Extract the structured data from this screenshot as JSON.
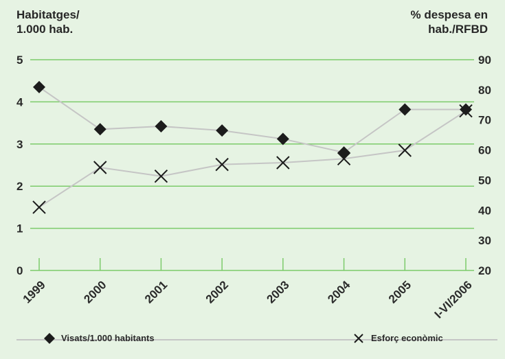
{
  "chart_data": {
    "type": "line",
    "title": "",
    "y_left_label_line1": "Habitatges/",
    "y_left_label_line2": "1.000 hab.",
    "y_right_label_line1": "% despesa en",
    "y_right_label_line2": "hab./RFBD",
    "categories": [
      "1999",
      "2000",
      "2001",
      "2002",
      "2003",
      "2004",
      "2005",
      "I-VI/2006"
    ],
    "y_left_ticks": [
      "0",
      "1",
      "2",
      "3",
      "4",
      "5"
    ],
    "y_right_ticks": [
      "20",
      "30",
      "40",
      "50",
      "60",
      "70",
      "80",
      "90"
    ],
    "y_left_range": [
      0,
      5
    ],
    "y_right_range": [
      20,
      90
    ],
    "grid": true,
    "legend_position": "bottom",
    "series": [
      {
        "name": "Visats/1.000 habitants",
        "axis": "left",
        "marker": "diamond",
        "values": [
          4.35,
          3.35,
          3.42,
          3.32,
          3.12,
          2.8,
          3.82,
          3.82
        ]
      },
      {
        "name": "Esforç econòmic",
        "axis": "right",
        "marker": "x",
        "values": [
          41.0,
          54.2,
          51.3,
          55.2,
          55.8,
          57.1,
          59.9,
          73.0
        ]
      }
    ],
    "colors": {
      "background": "#e6f3e3",
      "grid": "#7ccb6a",
      "line": "#c5c5c5",
      "marker": "#1c1c1c",
      "text": "#262626"
    }
  }
}
